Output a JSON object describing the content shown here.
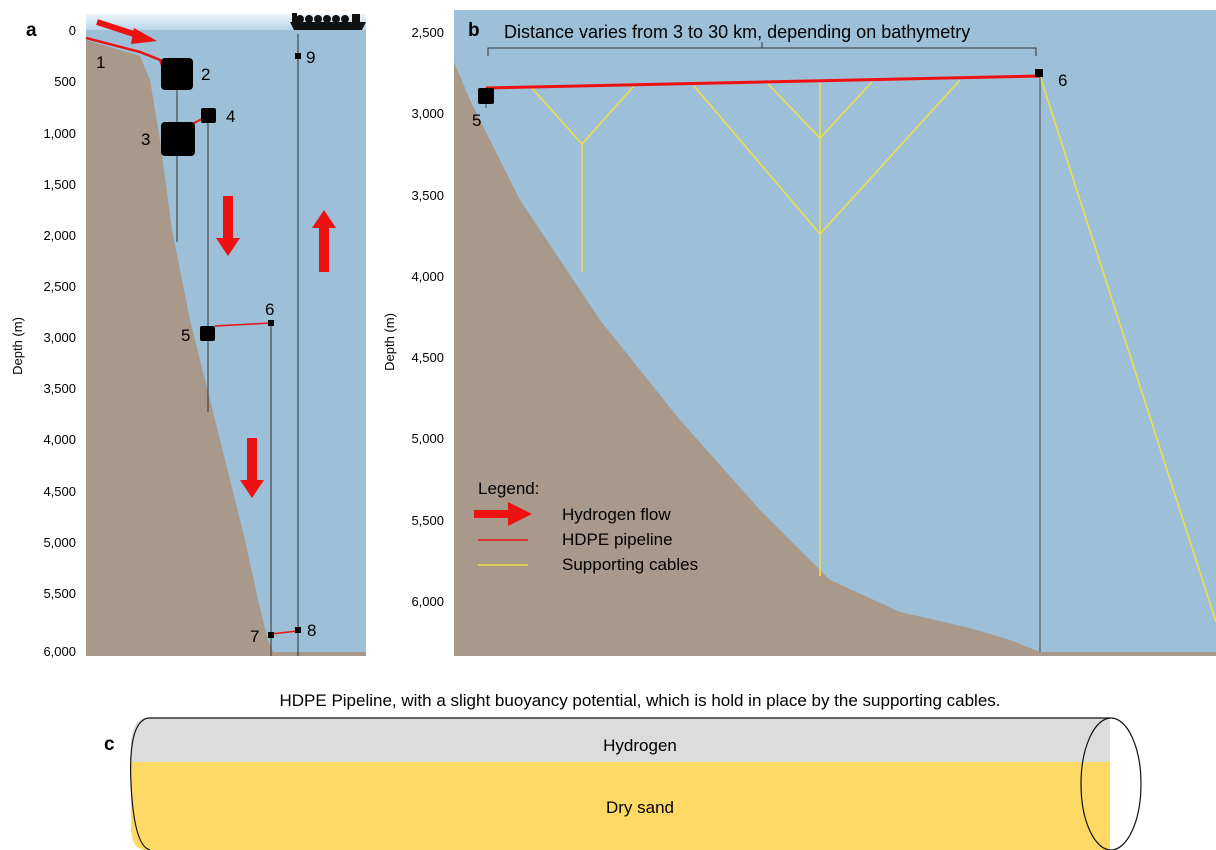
{
  "panel_a": {
    "letter": "a",
    "y_axis_label": "Depth (m)",
    "ticks": [
      "0",
      "500",
      "1,000",
      "1,500",
      "2,000",
      "2,500",
      "3,000",
      "3,500",
      "4,000",
      "4,500",
      "5,000",
      "5,500",
      "6,000"
    ],
    "points": [
      "1",
      "2",
      "3",
      "4",
      "5",
      "6",
      "7",
      "8",
      "9"
    ]
  },
  "panel_b": {
    "letter": "b",
    "y_axis_label": "Depth (m)",
    "ticks": [
      "2,500",
      "3,000",
      "3,500",
      "4,000",
      "4,500",
      "5,000",
      "5,500",
      "6,000"
    ],
    "span_label": "Distance varies from 3 to 30 km, depending on bathymetry",
    "points": [
      "5",
      "6"
    ],
    "legend": {
      "title": "Legend:",
      "items": [
        {
          "label": "Hydrogen flow",
          "color": "#ee1111"
        },
        {
          "label": "HDPE pipeline",
          "color": "#ee1111"
        },
        {
          "label": "Supporting cables",
          "color": "#f0e040"
        }
      ]
    }
  },
  "panel_c": {
    "letter": "c",
    "caption": "HDPE Pipeline, with a slight buoyancy potential, which is hold in place by the supporting cables.",
    "top_label": "Hydrogen",
    "bottom_label": "Dry sand"
  },
  "colors": {
    "water": "#9dbfd8",
    "seabed": "#a8998a",
    "pipeline": "#ee1111",
    "cables": "#f0e040",
    "sand": "#ffd966",
    "gas": "#dcdcdc"
  }
}
